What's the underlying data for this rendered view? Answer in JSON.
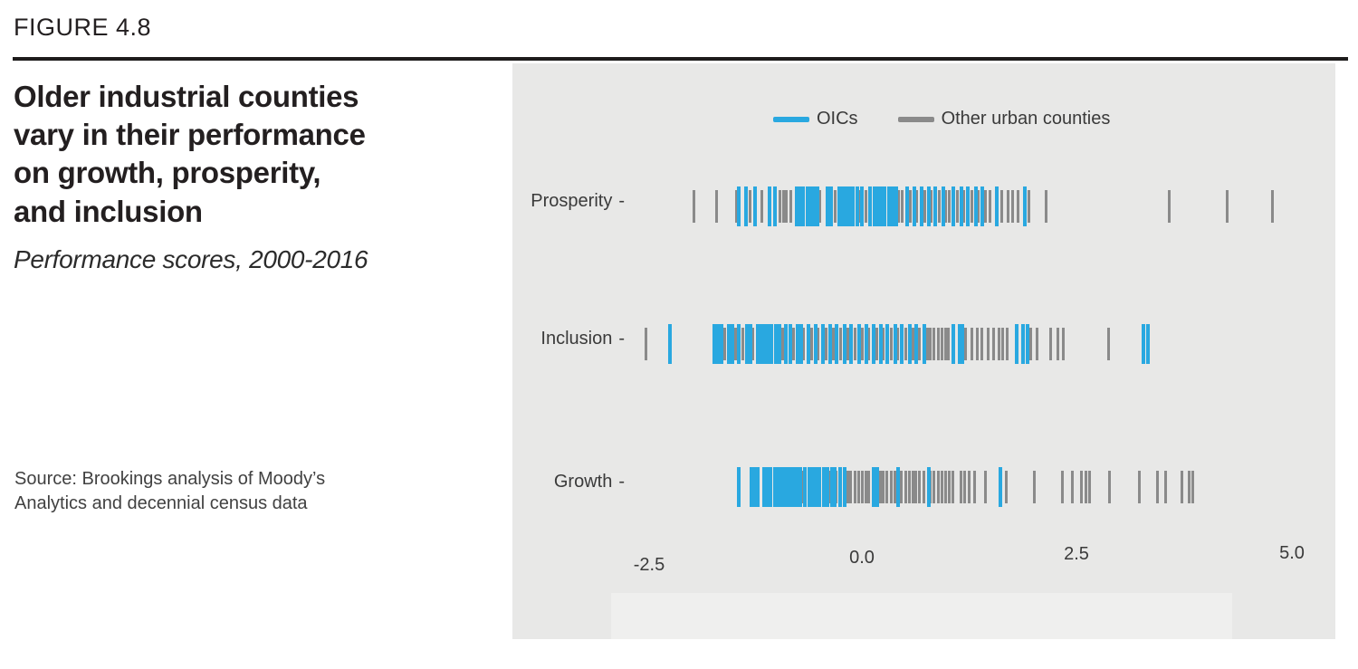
{
  "figure_label": "FIGURE 4.8",
  "source": {
    "lines": [
      "Source: Brookings analysis of Moody’s",
      "Analytics and decennial census data"
    ]
  },
  "chart_data": {
    "type": "strip",
    "title": "Older industrial counties vary in their performance on growth, prosperity, and inclusion",
    "title_lines": [
      "Older industrial counties",
      "vary in their performance",
      "on growth, prosperity,",
      "and inclusion"
    ],
    "subtitle": "Performance scores, 2000-2016",
    "xlabel": "",
    "ylabel": "",
    "categories": [
      "Prosperity",
      "Inclusion",
      "Growth"
    ],
    "row_label_suffix": "-",
    "xlim": [
      -2.5,
      5.0
    ],
    "x_ticks": [
      -2.5,
      0.0,
      2.5,
      5.0
    ],
    "x_tick_labels": [
      "-2.5",
      "0.0",
      "2.5",
      "5.0"
    ],
    "legend_position": "top",
    "grid": false,
    "legend": [
      {
        "label": "OICs",
        "color": "#29a8e0"
      },
      {
        "label": "Other urban counties",
        "color": "#8a8a8a"
      }
    ],
    "colors": {
      "oics": "#29a8e0",
      "other": "#8a8a8a",
      "panel_bg": "#e8e8e7",
      "text": "#231f20"
    },
    "series": [
      {
        "category": "Prosperity",
        "oics": [
          -1.45,
          -1.37,
          -1.26,
          -1.1,
          -1.03,
          -0.78,
          -0.74,
          -0.7,
          -0.65,
          -0.61,
          -0.57,
          -0.53,
          -0.42,
          -0.38,
          -0.28,
          -0.24,
          -0.2,
          -0.16,
          -0.12,
          -0.07,
          -0.02,
          0.08,
          0.13,
          0.17,
          0.21,
          0.25,
          0.3,
          0.34,
          0.38,
          0.51,
          0.59,
          0.68,
          0.76,
          0.84,
          0.93,
          1.05,
          1.14,
          1.22,
          1.31,
          1.39,
          1.56,
          1.88
        ],
        "other": [
          -1.97,
          -1.71,
          -1.48,
          -1.32,
          -1.18,
          -0.97,
          -0.93,
          -0.89,
          -0.84,
          -0.5,
          -0.32,
          -0.05,
          0.03,
          0.14,
          0.42,
          0.46,
          0.55,
          0.63,
          0.72,
          0.8,
          0.89,
          0.97,
          1.01,
          1.1,
          1.18,
          1.27,
          1.35,
          1.43,
          1.48,
          1.62,
          1.69,
          1.75,
          1.81,
          1.94,
          2.14,
          3.57,
          4.25,
          4.78
        ]
      },
      {
        "category": "Inclusion",
        "oics": [
          -2.26,
          -1.74,
          -1.7,
          -1.66,
          -1.57,
          -1.53,
          -1.45,
          -1.36,
          -1.32,
          -1.23,
          -1.19,
          -1.15,
          -1.11,
          -1.07,
          -1.02,
          -0.98,
          -0.9,
          -0.85,
          -0.77,
          -0.73,
          -0.64,
          -0.56,
          -0.47,
          -0.39,
          -0.31,
          -0.22,
          -0.14,
          -0.05,
          0.03,
          0.12,
          0.2,
          0.28,
          0.37,
          0.45,
          0.54,
          0.62,
          0.71,
          1.05,
          1.12,
          1.16,
          1.79,
          1.86,
          1.92,
          3.27,
          3.32
        ],
        "other": [
          -2.53,
          -1.61,
          -1.49,
          -1.4,
          -1.28,
          -0.94,
          -0.81,
          -0.69,
          -0.6,
          -0.52,
          -0.43,
          -0.35,
          -0.26,
          -0.18,
          -0.09,
          -0.01,
          0.07,
          0.16,
          0.24,
          0.33,
          0.41,
          0.5,
          0.58,
          0.66,
          0.75,
          0.79,
          0.83,
          0.88,
          0.92,
          0.96,
          1.0,
          1.2,
          1.27,
          1.33,
          1.39,
          1.46,
          1.52,
          1.59,
          1.63,
          1.68,
          1.96,
          2.03,
          2.19,
          2.27,
          2.34,
          2.87
        ]
      },
      {
        "category": "Growth",
        "oics": [
          -1.45,
          -1.31,
          -1.27,
          -1.23,
          -1.16,
          -1.13,
          -1.08,
          -1.03,
          -0.99,
          -0.95,
          -0.91,
          -0.86,
          -0.82,
          -0.78,
          -0.74,
          -0.68,
          -0.63,
          -0.59,
          -0.55,
          -0.51,
          -0.46,
          -0.42,
          -0.37,
          -0.33,
          -0.27,
          -0.22,
          0.12,
          0.16,
          0.4,
          0.76,
          1.6
        ],
        "other": [
          -0.7,
          -0.39,
          -0.31,
          -0.18,
          -0.14,
          -0.09,
          -0.05,
          -0.01,
          0.03,
          0.07,
          0.2,
          0.24,
          0.28,
          0.33,
          0.37,
          0.45,
          0.5,
          0.54,
          0.58,
          0.62,
          0.66,
          0.71,
          0.79,
          0.83,
          0.88,
          0.92,
          0.96,
          1.01,
          1.05,
          1.14,
          1.19,
          1.24,
          1.3,
          1.43,
          1.67,
          2.0,
          2.33,
          2.44,
          2.55,
          2.6,
          2.64,
          2.88,
          3.23,
          3.44,
          3.53,
          3.72,
          3.81,
          3.85
        ]
      }
    ]
  }
}
